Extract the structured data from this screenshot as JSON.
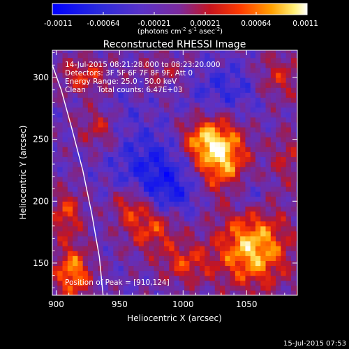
{
  "chart_data": {
    "type": "heatmap",
    "title": "Reconstructed RHESSI Image",
    "xlabel": "Heliocentric X (arcsec)",
    "ylabel": "Heliocentric Y (arcsec)",
    "xlim": [
      897,
      1090
    ],
    "ylim": [
      124,
      322
    ],
    "x_ticks": [
      900,
      950,
      1000,
      1050
    ],
    "y_ticks": [
      150,
      200,
      250,
      300
    ],
    "colorbar": {
      "range": [
        -0.0011,
        0.0011
      ],
      "tick_labels": [
        "-0.0011",
        "-0.00064",
        "-0.00021",
        "0.00021",
        "0.00064",
        "0.0011"
      ],
      "unit_label_parts": [
        "(photons cm",
        "-2",
        " s",
        "-1",
        " asec",
        "-2",
        ")"
      ]
    },
    "annotations": [
      "14-Jul-2015 08:21:28.000 to 08:23:20.000",
      "Detectors: 3F 5F 6F 7F 8F 9F, Att 0",
      "Energy Range: 25.0 - 50.0 keV",
      "Clean     Total counts: 6.47E+03"
    ],
    "peak_label": "Position of Peak = [910,124]",
    "peak_position": [
      910,
      124
    ],
    "limb_curve": [
      [
        897,
        310
      ],
      [
        904,
        290
      ],
      [
        912,
        260
      ],
      [
        921,
        225
      ],
      [
        928,
        190
      ],
      [
        934,
        155
      ],
      [
        937,
        124
      ]
    ],
    "sources": [
      {
        "x": 1030,
        "y": 238,
        "amp": 1.0,
        "sx": 14,
        "sy": 20
      },
      {
        "x": 1012,
        "y": 250,
        "amp": 0.55,
        "sx": 12,
        "sy": 12
      },
      {
        "x": 1055,
        "y": 162,
        "amp": 0.95,
        "sx": 20,
        "sy": 22
      },
      {
        "x": 975,
        "y": 180,
        "amp": 0.6,
        "sx": 15,
        "sy": 14
      },
      {
        "x": 958,
        "y": 198,
        "amp": 0.45,
        "sx": 10,
        "sy": 10
      },
      {
        "x": 1002,
        "y": 150,
        "amp": 0.5,
        "sx": 14,
        "sy": 12
      },
      {
        "x": 913,
        "y": 142,
        "amp": 0.8,
        "sx": 10,
        "sy": 15
      },
      {
        "x": 908,
        "y": 190,
        "amp": 0.55,
        "sx": 9,
        "sy": 14
      },
      {
        "x": 922,
        "y": 302,
        "amp": 0.5,
        "sx": 14,
        "sy": 10
      },
      {
        "x": 935,
        "y": 260,
        "amp": 0.45,
        "sx": 12,
        "sy": 12
      },
      {
        "x": 1075,
        "y": 300,
        "amp": 0.45,
        "sx": 14,
        "sy": 14
      },
      {
        "x": 1082,
        "y": 235,
        "amp": 0.35,
        "sx": 10,
        "sy": 16
      },
      {
        "x": 985,
        "y": 305,
        "amp": 0.3,
        "sx": 14,
        "sy": 10
      },
      {
        "x": 975,
        "y": 230,
        "amp": -0.45,
        "sx": 22,
        "sy": 20
      },
      {
        "x": 1035,
        "y": 290,
        "amp": -0.35,
        "sx": 22,
        "sy": 16
      },
      {
        "x": 990,
        "y": 205,
        "amp": -0.4,
        "sx": 16,
        "sy": 14
      },
      {
        "x": 1050,
        "y": 205,
        "amp": -0.3,
        "sx": 10,
        "sy": 10
      },
      {
        "x": 950,
        "y": 270,
        "amp": -0.2,
        "sx": 12,
        "sy": 14
      }
    ]
  },
  "footer": {
    "timestamp": "15-Jul-2015 07:53"
  }
}
